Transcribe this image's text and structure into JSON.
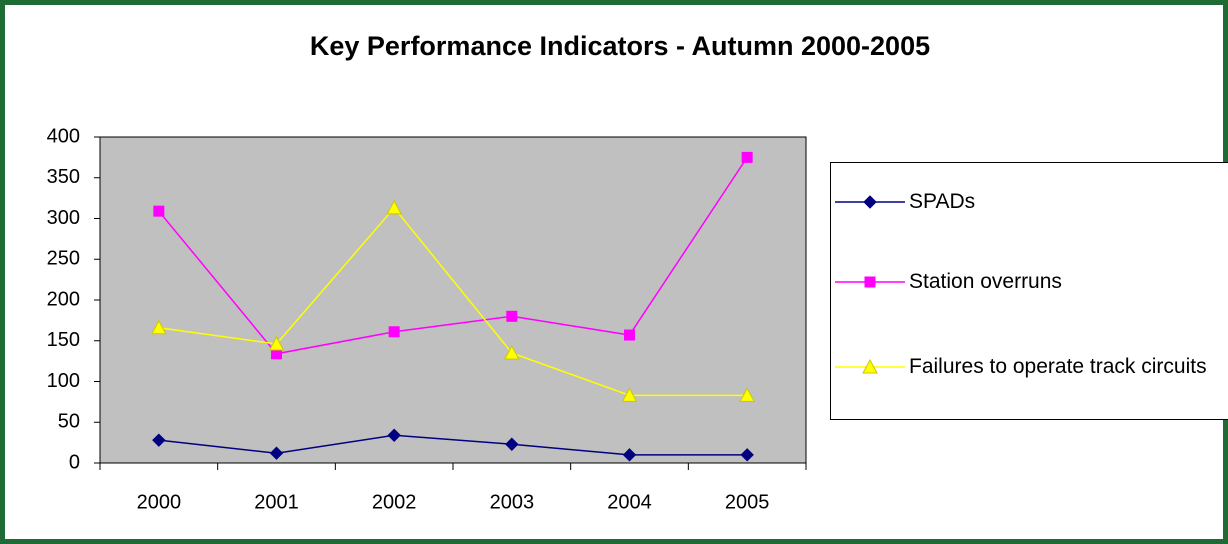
{
  "chart_data": {
    "type": "line",
    "title": "Key Performance Indicators - Autumn 2000-2005",
    "categories": [
      "2000",
      "2001",
      "2002",
      "2003",
      "2004",
      "2005"
    ],
    "series": [
      {
        "name": "SPADs",
        "color": "#000080",
        "marker": "diamond",
        "values": [
          28,
          12,
          34,
          23,
          10,
          10
        ]
      },
      {
        "name": "Station overruns",
        "color": "#ff00ff",
        "marker": "square",
        "values": [
          309,
          134,
          161,
          180,
          157,
          375
        ]
      },
      {
        "name": "Failures to operate track circuits",
        "color": "#ffff00",
        "marker": "triangle",
        "values": [
          166,
          146,
          313,
          135,
          83,
          83
        ]
      }
    ],
    "ylim": [
      0,
      400
    ],
    "yticks": [
      0,
      50,
      100,
      150,
      200,
      250,
      300,
      350,
      400
    ],
    "grid": false,
    "legend": "right",
    "plot_background": "#c0c0c0"
  }
}
